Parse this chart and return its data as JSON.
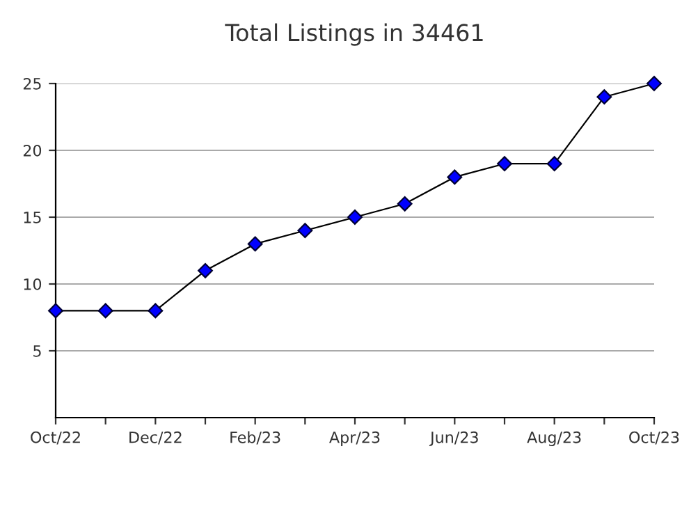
{
  "chart_data": {
    "type": "line",
    "title": "Total Listings in 34461",
    "categories": [
      "Oct/22",
      null,
      "Dec/22",
      null,
      "Feb/23",
      null,
      "Apr/23",
      null,
      "Jun/23",
      null,
      "Aug/23",
      null,
      "Oct/23"
    ],
    "series": [
      {
        "color": "#0000ff",
        "values": [
          8,
          8,
          8,
          11,
          13,
          14,
          15,
          16,
          18,
          19,
          19,
          24,
          25
        ]
      }
    ],
    "ylim": [
      0,
      25
    ],
    "yticks": [
      5,
      10,
      15,
      20,
      25
    ],
    "grid": "y",
    "marker": "diamond",
    "line_style": "solid"
  }
}
